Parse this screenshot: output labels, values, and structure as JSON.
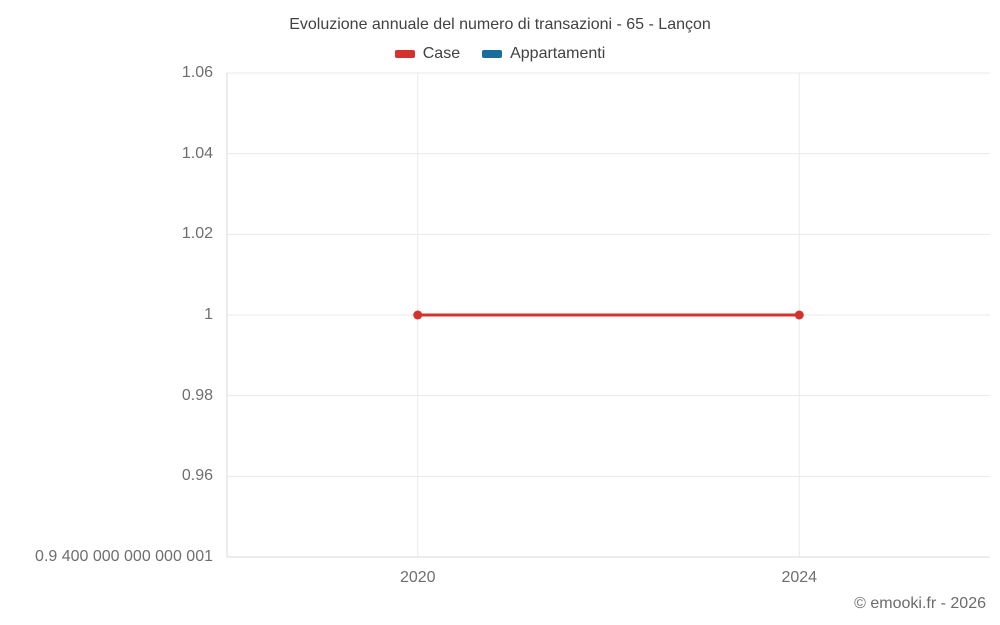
{
  "title": "Evoluzione annuale del numero di transazioni - 65 - Lançon",
  "legend": {
    "items": [
      {
        "label": "Case",
        "color": "#d3322d"
      },
      {
        "label": "Appartamenti",
        "color": "#186e9d"
      }
    ]
  },
  "copyright": "© emooki.fr - 2026",
  "colors": {
    "gridline": "#e9e9e9",
    "axis_line": "#d9d9d9",
    "title_text": "#424242",
    "axis_text": "#6e6e6e",
    "case_series": "#d3322d",
    "appartamenti_series": "#186e9d"
  },
  "chart_data": {
    "type": "line",
    "title": "Evoluzione annuale del numero di transazioni - 65 - Lançon",
    "xlabel": "",
    "ylabel": "",
    "x_categories": [
      "2020",
      "2024"
    ],
    "series": [
      {
        "name": "Case",
        "color": "#d3322d",
        "values": [
          1,
          1
        ]
      },
      {
        "name": "Appartamenti",
        "color": "#186e9d",
        "values": [
          null,
          null
        ]
      }
    ],
    "y_axis": {
      "range": [
        0.94,
        1.06
      ],
      "ticks": [
        {
          "label": "1.06",
          "value": 1.06
        },
        {
          "label": "1.04",
          "value": 1.04
        },
        {
          "label": "1.02",
          "value": 1.02
        },
        {
          "label": "1",
          "value": 1.0
        },
        {
          "label": "0.98",
          "value": 0.98
        },
        {
          "label": "0.96",
          "value": 0.96
        },
        {
          "label": "0.9 400 000 000 000 001",
          "value": 0.94
        }
      ]
    },
    "grid": true,
    "legend_position": "top"
  }
}
